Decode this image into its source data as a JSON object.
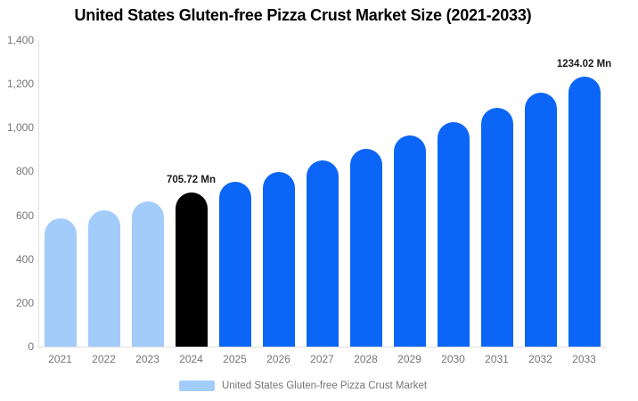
{
  "chart_data": {
    "type": "bar",
    "title": "United States Gluten-free Pizza Crust Market Size (2021-2033)",
    "categories": [
      "2021",
      "2022",
      "2023",
      "2024",
      "2025",
      "2026",
      "2027",
      "2028",
      "2029",
      "2030",
      "2031",
      "2032",
      "2033"
    ],
    "series": [
      {
        "name": "United States Gluten-free Pizza Crust Market",
        "values": [
          585,
          622,
          662,
          705.72,
          751,
          799,
          850,
          905,
          963,
          1024,
          1090,
          1160,
          1234.02
        ]
      }
    ],
    "point_segments": [
      "historical",
      "historical",
      "historical",
      "current",
      "forecast",
      "forecast",
      "forecast",
      "forecast",
      "forecast",
      "forecast",
      "forecast",
      "forecast",
      "forecast"
    ],
    "data_labels": [
      {
        "category": "2024",
        "text": "705.72 Mn"
      },
      {
        "category": "2033",
        "text": "1234.02 Mn"
      }
    ],
    "y_ticks": [
      "0",
      "200",
      "400",
      "600",
      "800",
      "1,000",
      "1,200",
      "1,400"
    ],
    "ylim": [
      0,
      1400
    ],
    "xlabel": "",
    "ylabel": "",
    "grid": false,
    "legend_position": "bottom"
  },
  "colors": {
    "historical": "#a2ccfa",
    "current": "#000000",
    "forecast": "#0b66f7",
    "axis_line": "#e0e0e0",
    "tick_text": "#757575",
    "data_label_text": "#1a1a1a",
    "legend_swatch": "#a2ccfa"
  },
  "legend": {
    "items": [
      {
        "label": "United States Gluten-free Pizza Crust Market",
        "swatch_color": "#a2ccfa"
      }
    ]
  }
}
